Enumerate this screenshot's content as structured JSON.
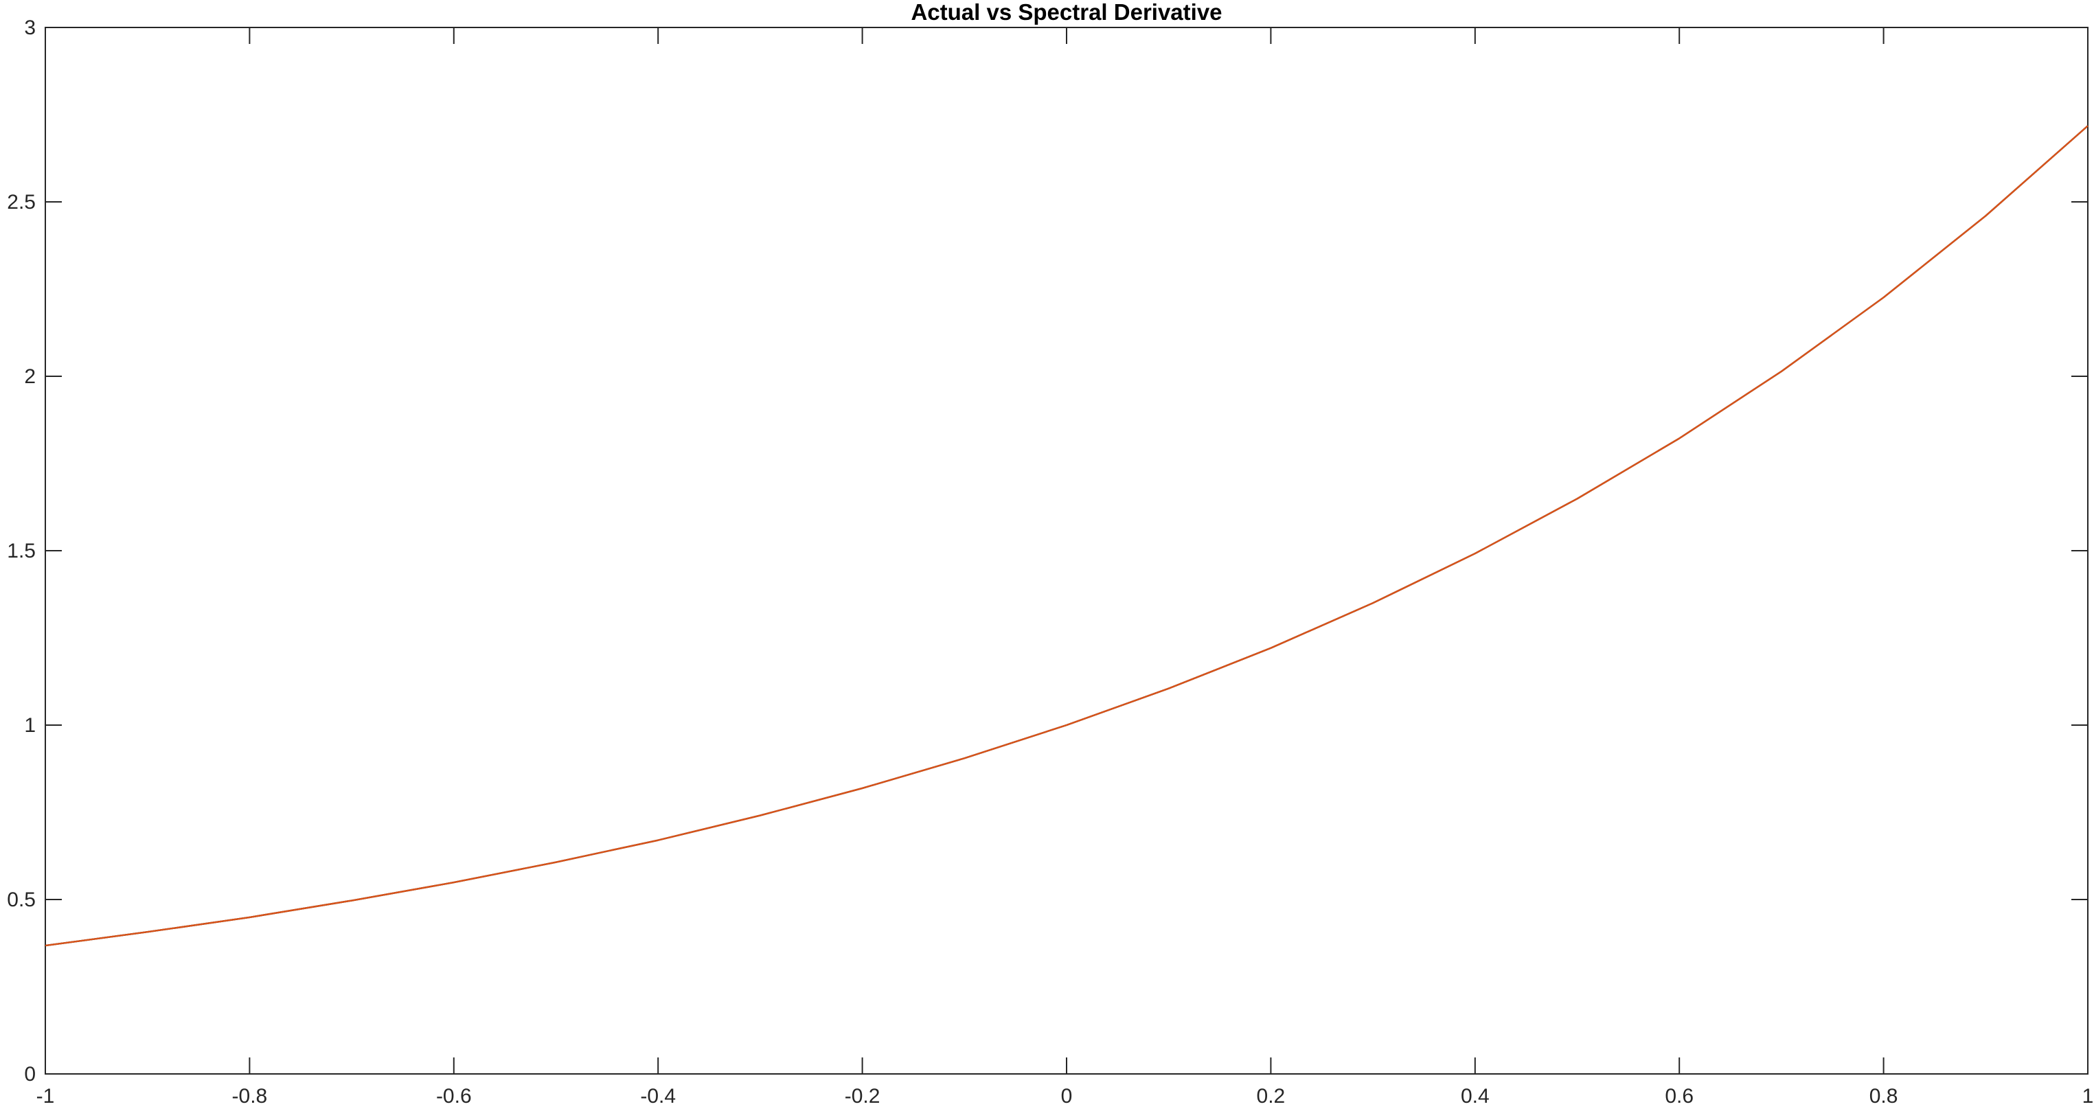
{
  "chart_data": {
    "type": "line",
    "title": "Actual vs Spectral Derivative",
    "xlabel": "",
    "ylabel": "",
    "xlim": [
      -1,
      1
    ],
    "ylim": [
      0,
      3
    ],
    "grid": false,
    "legend": "none",
    "xticks": [
      -1,
      -0.8,
      -0.6,
      -0.4,
      -0.2,
      0,
      0.2,
      0.4,
      0.6,
      0.8,
      1
    ],
    "xtick_labels": [
      "-1",
      "-0.8",
      "-0.6",
      "-0.4",
      "-0.2",
      "0",
      "0.2",
      "0.4",
      "0.6",
      "0.8",
      "1"
    ],
    "yticks": [
      0,
      0.5,
      1,
      1.5,
      2,
      2.5,
      3
    ],
    "ytick_labels": [
      "0",
      "0.5",
      "1",
      "1.5",
      "2",
      "2.5",
      "3"
    ],
    "x": [
      -1,
      -0.9,
      -0.8,
      -0.7,
      -0.6,
      -0.5,
      -0.4,
      -0.3,
      -0.2,
      -0.1,
      0,
      0.1,
      0.2,
      0.3,
      0.4,
      0.5,
      0.6,
      0.7,
      0.8,
      0.9,
      1
    ],
    "series": [
      {
        "color": "#000000",
        "values": [
          0.368,
          0.407,
          0.449,
          0.497,
          0.549,
          0.607,
          0.67,
          0.741,
          0.819,
          0.905,
          1.0,
          1.105,
          1.221,
          1.35,
          1.492,
          1.649,
          1.822,
          2.014,
          2.226,
          2.46,
          2.718
        ]
      },
      {
        "color": "#D95319",
        "values": [
          0.368,
          0.407,
          0.449,
          0.497,
          0.549,
          0.607,
          0.67,
          0.741,
          0.819,
          0.905,
          1.0,
          1.105,
          1.221,
          1.35,
          1.492,
          1.649,
          1.822,
          2.014,
          2.226,
          2.46,
          2.718
        ]
      }
    ]
  }
}
